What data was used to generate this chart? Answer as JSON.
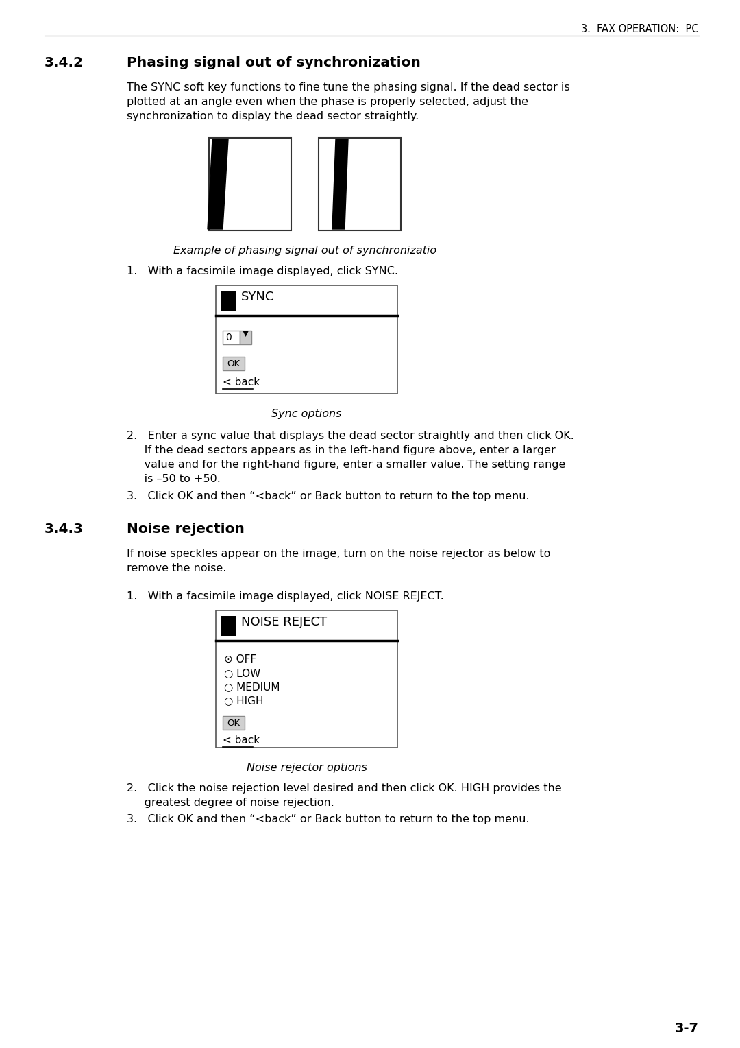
{
  "page_header": "3.  FAX OPERATION:  PC",
  "section_342_num": "3.4.2",
  "section_342_title": "Phasing signal out of synchronization",
  "para_342_lines": [
    "The SYNC soft key functions to fine tune the phasing signal. If the dead sector is",
    "plotted at an angle even when the phase is properly selected, adjust the",
    "synchronization to display the dead sector straightly."
  ],
  "fig_caption_342": "Example of phasing signal out of synchronizatio",
  "step1_342": "1.   With a facsimile image displayed, click SYNC.",
  "sync_title": "SYNC",
  "sync_caption": "Sync options",
  "step2_342_lines": [
    "2.   Enter a sync value that displays the dead sector straightly and then click OK.",
    "     If the dead sectors appears as in the left-hand figure above, enter a larger",
    "     value and for the right-hand figure, enter a smaller value. The setting range",
    "     is –50 to +50."
  ],
  "step3_342": "3.   Click OK and then “<back” or Back button to return to the top menu.",
  "section_343_num": "3.4.3",
  "section_343_title": "Noise rejection",
  "para_343_lines": [
    "If noise speckles appear on the image, turn on the noise rejector as below to",
    "remove the noise."
  ],
  "step1_343": "1.   With a facsimile image displayed, click NOISE REJECT.",
  "noise_title": "NOISE REJECT",
  "noise_caption": "Noise rejector options",
  "step2_343_lines": [
    "2.   Click the noise rejection level desired and then click OK. HIGH provides the",
    "     greatest degree of noise rejection."
  ],
  "step3_343": "3.   Click OK and then “<back” or Back button to return to the top menu.",
  "page_number": "3-7",
  "bg_color": "#ffffff"
}
